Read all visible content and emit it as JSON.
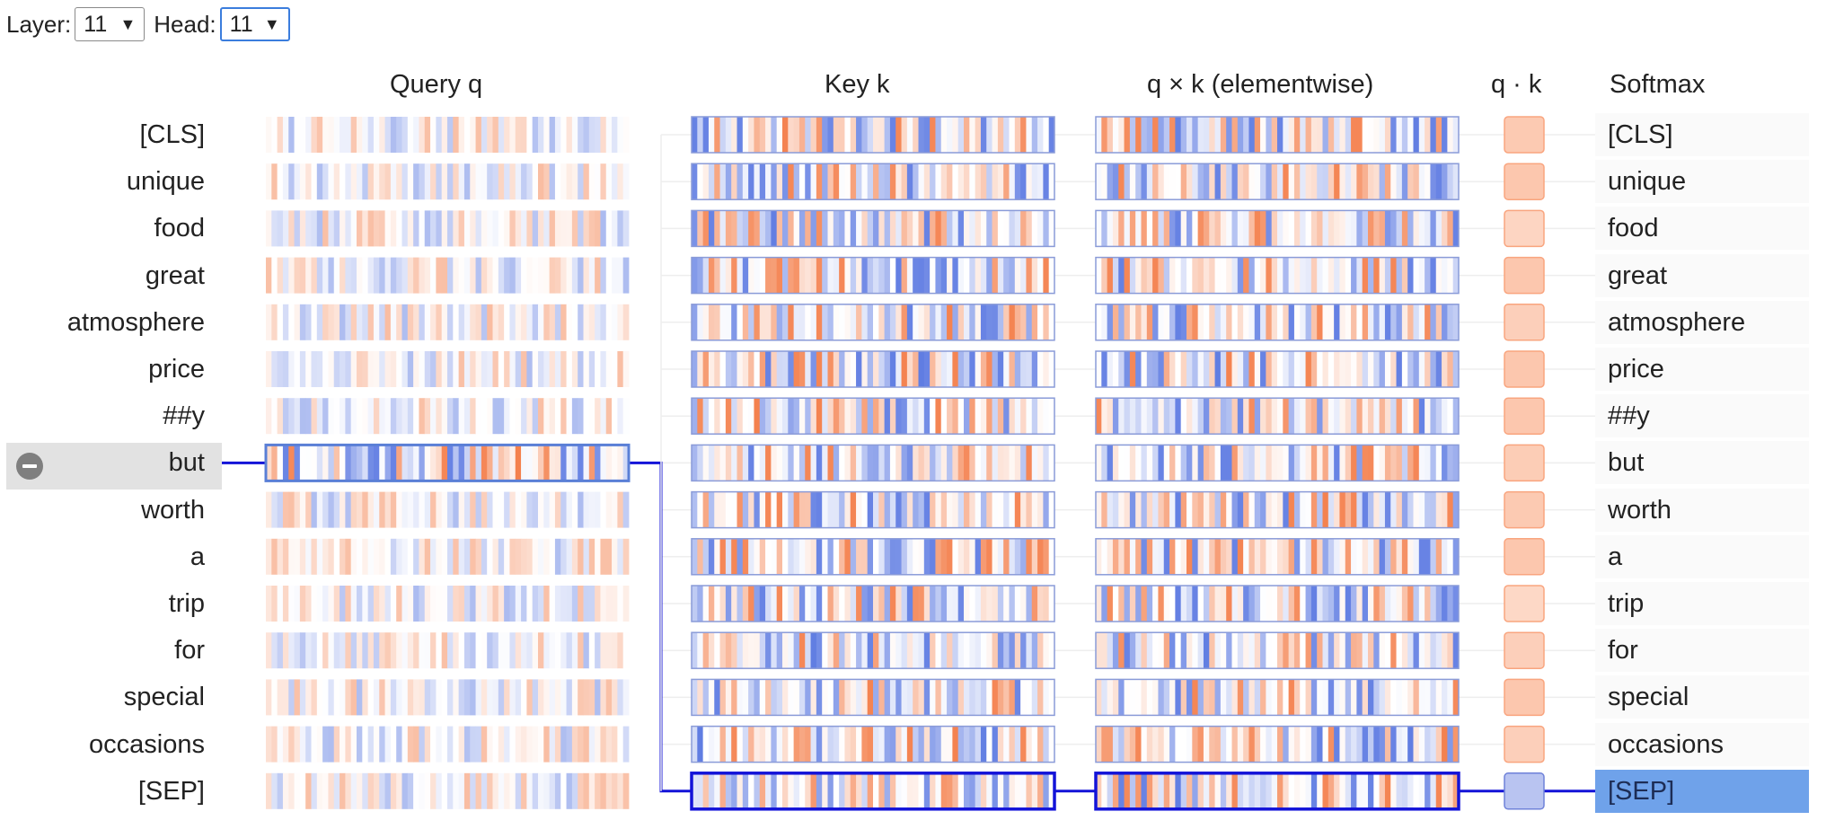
{
  "controls": {
    "layer_label": "Layer:",
    "layer_value": "11",
    "head_label": "Head:",
    "head_value": "11"
  },
  "headers": {
    "query": "Query q",
    "key": "Key k",
    "product": "q × k (elementwise)",
    "dot": "q · k",
    "softmax": "Softmax"
  },
  "tokens": [
    "[CLS]",
    "unique",
    "food",
    "great",
    "atmosphere",
    "price",
    "##y",
    "but",
    "worth",
    "a",
    "trip",
    "for",
    "special",
    "occasions",
    "[SEP]"
  ],
  "selected_query_index": 7,
  "attended_key_index": 14,
  "colors": {
    "positive": "#f26b2f",
    "negative": "#4466dd",
    "highlight_line": "#1313d8",
    "softmax_active": "#6fa2ea",
    "dot_positive_fill": "#fcc7ae",
    "dot_positive_border": "#f9a57f",
    "dot_negative_fill": "#b9c4f1",
    "dot_negative_border": "#6f82d9"
  },
  "dot_product_intensity": [
    0.55,
    0.7,
    0.35,
    0.75,
    0.45,
    0.65,
    0.6,
    0.5,
    0.55,
    0.65,
    0.3,
    0.45,
    0.6,
    0.45,
    -0.6
  ]
}
